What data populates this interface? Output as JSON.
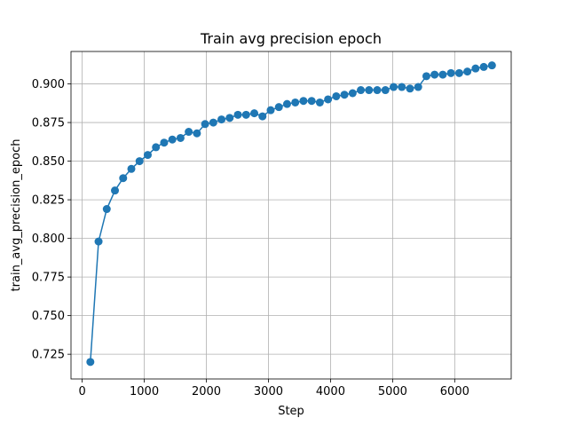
{
  "chart_data": {
    "type": "line",
    "title": "Train avg precision epoch",
    "xlabel": "Step",
    "ylabel": "train_avg_precision_epoch",
    "xlim": [
      -180,
      6910
    ],
    "ylim": [
      0.709,
      0.921
    ],
    "xticks": [
      0,
      1000,
      2000,
      3000,
      4000,
      5000,
      6000
    ],
    "yticks": [
      0.725,
      0.75,
      0.775,
      0.8,
      0.825,
      0.85,
      0.875,
      0.9
    ],
    "grid": true,
    "color": "#1f77b4",
    "series": [
      {
        "name": "",
        "marker": "circle",
        "x": [
          132,
          264,
          396,
          528,
          660,
          792,
          924,
          1056,
          1188,
          1320,
          1452,
          1584,
          1716,
          1848,
          1980,
          2112,
          2244,
          2376,
          2508,
          2640,
          2772,
          2904,
          3036,
          3168,
          3300,
          3432,
          3564,
          3696,
          3828,
          3960,
          4092,
          4224,
          4356,
          4488,
          4620,
          4752,
          4884,
          5016,
          5148,
          5280,
          5412,
          5544,
          5676,
          5808,
          5940,
          6072,
          6204,
          6336,
          6468,
          6600
        ],
        "y": [
          0.72,
          0.798,
          0.819,
          0.831,
          0.839,
          0.845,
          0.85,
          0.854,
          0.859,
          0.862,
          0.864,
          0.865,
          0.869,
          0.868,
          0.874,
          0.875,
          0.877,
          0.878,
          0.88,
          0.88,
          0.881,
          0.879,
          0.883,
          0.885,
          0.887,
          0.888,
          0.889,
          0.889,
          0.888,
          0.89,
          0.892,
          0.893,
          0.894,
          0.896,
          0.896,
          0.896,
          0.896,
          0.898,
          0.898,
          0.897,
          0.898,
          0.905,
          0.906,
          0.906,
          0.907,
          0.907,
          0.908,
          0.91,
          0.911,
          0.912
        ]
      }
    ]
  }
}
